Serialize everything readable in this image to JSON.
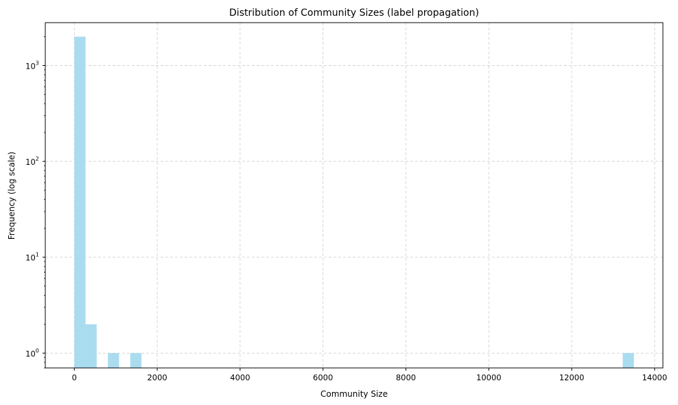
{
  "chart_data": {
    "type": "bar",
    "title": "Distribution of Community Sizes (label propagation)",
    "xlabel": "Community Size",
    "ylabel": "Frequency (log scale)",
    "xlim": [
      -700,
      14200
    ],
    "ylim": [
      0.7,
      2800
    ],
    "yscale": "log",
    "grid": true,
    "bar_color": "#aadcef",
    "grid_color": "#cccccc",
    "xticks": [
      0,
      2000,
      4000,
      6000,
      8000,
      10000,
      12000,
      14000
    ],
    "xtick_labels": [
      "0",
      "2000",
      "4000",
      "6000",
      "8000",
      "10000",
      "12000",
      "14000"
    ],
    "yticks": [
      1,
      10,
      100,
      1000
    ],
    "ytick_bases": [
      "10",
      "10",
      "10",
      "10"
    ],
    "ytick_exps": [
      "0",
      "1",
      "2",
      "3"
    ],
    "bin_width": 270,
    "bins": [
      {
        "x0": 0,
        "count": 2000
      },
      {
        "x0": 270,
        "count": 2
      },
      {
        "x0": 810,
        "count": 1
      },
      {
        "x0": 1350,
        "count": 1
      },
      {
        "x0": 13230,
        "count": 1
      }
    ]
  }
}
